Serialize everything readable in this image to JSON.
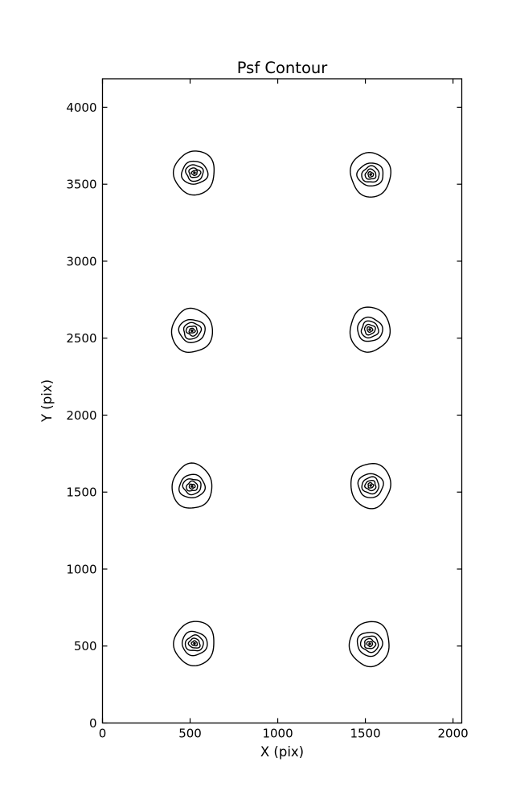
{
  "figure": {
    "title": "Psf Contour",
    "xlabel": "X (pix)",
    "ylabel": "Y (pix)"
  },
  "chart_data": {
    "type": "contour",
    "title": "Psf Contour",
    "xlabel": "X (pix)",
    "ylabel": "Y (pix)",
    "xlim": [
      0,
      2050
    ],
    "ylim": [
      0,
      4185
    ],
    "xticks": [
      0,
      500,
      1000,
      1500,
      2000
    ],
    "yticks": [
      0,
      500,
      1000,
      1500,
      2000,
      2500,
      3000,
      3500,
      4000
    ],
    "grid": false,
    "legend": false,
    "line_color": "#000000",
    "background_color": "#ffffff",
    "tick_direction": "in",
    "psf_centers_xy": [
      [
        525,
        517
      ],
      [
        1525,
        514
      ],
      [
        511,
        1537
      ],
      [
        1530,
        1543
      ],
      [
        511,
        2548
      ],
      [
        1525,
        2556
      ],
      [
        525,
        3574
      ],
      [
        1530,
        3563
      ]
    ],
    "contour_levels_rx_ry": [
      [
        115,
        144
      ],
      [
        73,
        76
      ],
      [
        50,
        52
      ],
      [
        32,
        31
      ],
      [
        16,
        16
      ]
    ],
    "center_dot_radius": 8
  }
}
